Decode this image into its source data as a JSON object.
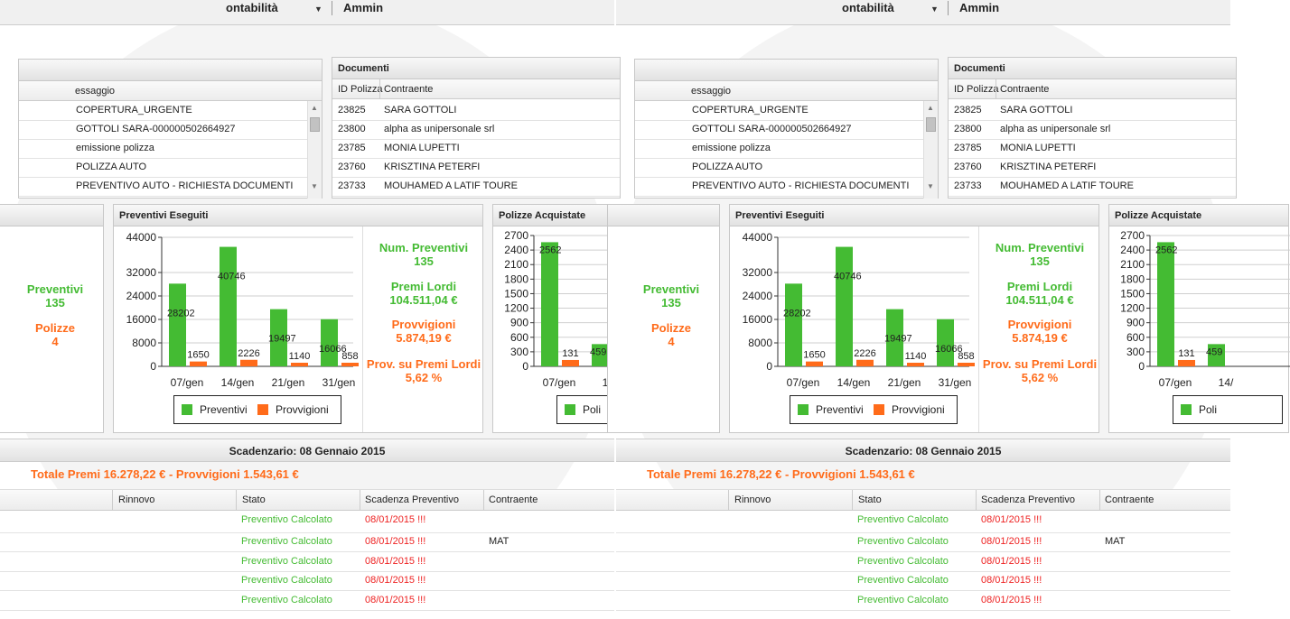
{
  "menu": {
    "item1": "ontabilità",
    "item2": "Ammin"
  },
  "messages_panel": {
    "column": "essaggio",
    "rows": [
      "COPERTURA_URGENTE",
      "GOTTOLI SARA-000000502664927",
      "emissione polizza",
      "POLIZZA AUTO",
      "PREVENTIVO AUTO - RICHIESTA DOCUMENTI"
    ]
  },
  "documents_panel": {
    "title": "Documenti",
    "columns": [
      "ID Polizza",
      "Contraente"
    ],
    "rows": [
      {
        "id": "23825",
        "name": "SARA GOTTOLI"
      },
      {
        "id": "23800",
        "name": "alpha as unipersonale srl"
      },
      {
        "id": "23785",
        "name": "MONIA LUPETTI"
      },
      {
        "id": "23760",
        "name": "KRISZTINA PETERFI"
      },
      {
        "id": "23733",
        "name": "MOUHAMED A LATIF TOURE"
      }
    ]
  },
  "left_stats": {
    "preventivi_label": "Preventivi",
    "preventivi_value": "135",
    "polizze_label": "Polizze",
    "polizze_value": "4"
  },
  "preventivi_panel": {
    "title": "Preventivi Eseguiti",
    "stats": {
      "num_label": "Num. Preventivi",
      "num_value": "135",
      "premi_label": "Premi Lordi",
      "premi_value": "104.511,04 €",
      "provv_label": "Provvigioni",
      "provv_value": "5.874,19 €",
      "perc_label": "Prov. su Premi Lordi",
      "perc_value": "5,62 %"
    }
  },
  "polizze_panel": {
    "title": "Polizze Acquistate",
    "legend_partial": "Poli"
  },
  "scadenzario": {
    "title": "Scadenzario: 08 Gennaio 2015",
    "totals": "Totale Premi 16.278,22 € - Provvigioni 1.543,61 €",
    "columns": [
      "Rinnovo",
      "Stato",
      "Scadenza Preventivo",
      "Contraente"
    ],
    "rows": [
      {
        "stato": "Preventivo Calcolato",
        "scadenza": "08/01/2015 !!!",
        "contraente": ""
      },
      {
        "stato": "Preventivo Calcolato",
        "scadenza": "08/01/2015 !!!",
        "contraente": "MAT"
      },
      {
        "stato": "Preventivo Calcolato",
        "scadenza": "08/01/2015 !!!",
        "contraente": ""
      },
      {
        "stato": "Preventivo Calcolato",
        "scadenza": "08/01/2015 !!!",
        "contraente": ""
      },
      {
        "stato": "Preventivo Calcolato",
        "scadenza": "08/01/2015 !!!",
        "contraente": ""
      }
    ]
  },
  "colors": {
    "green": "#44bb33",
    "orange": "#ff6b1a",
    "red": "#ee2222"
  },
  "chart_data": [
    {
      "type": "bar",
      "title": "Preventivi Eseguiti",
      "categories": [
        "07/gen",
        "14/gen",
        "21/gen",
        "31/gen"
      ],
      "series": [
        {
          "name": "Preventivi",
          "values": [
            28202,
            40746,
            19497,
            16066
          ]
        },
        {
          "name": "Provvigioni",
          "values": [
            1650,
            2226,
            1140,
            858
          ]
        }
      ],
      "ylim": [
        0,
        44000
      ],
      "yticks": [
        "0",
        "8000",
        "16000",
        "24000",
        "32000",
        "44000"
      ],
      "grid": true,
      "legend": "bottom"
    },
    {
      "type": "bar",
      "title": "Polizze Acquistate",
      "categories": [
        "07/gen",
        "14/"
      ],
      "series": [
        {
          "name": "Poli",
          "values": [
            2562,
            459
          ]
        },
        {
          "values": [
            131,
            null
          ]
        }
      ],
      "ylim": [
        0,
        2700
      ],
      "yticks": [
        "0",
        "300",
        "600",
        "900",
        "1200",
        "1500",
        "1800",
        "2100",
        "2400",
        "2700"
      ],
      "grid": true,
      "legend": "bottom"
    }
  ]
}
